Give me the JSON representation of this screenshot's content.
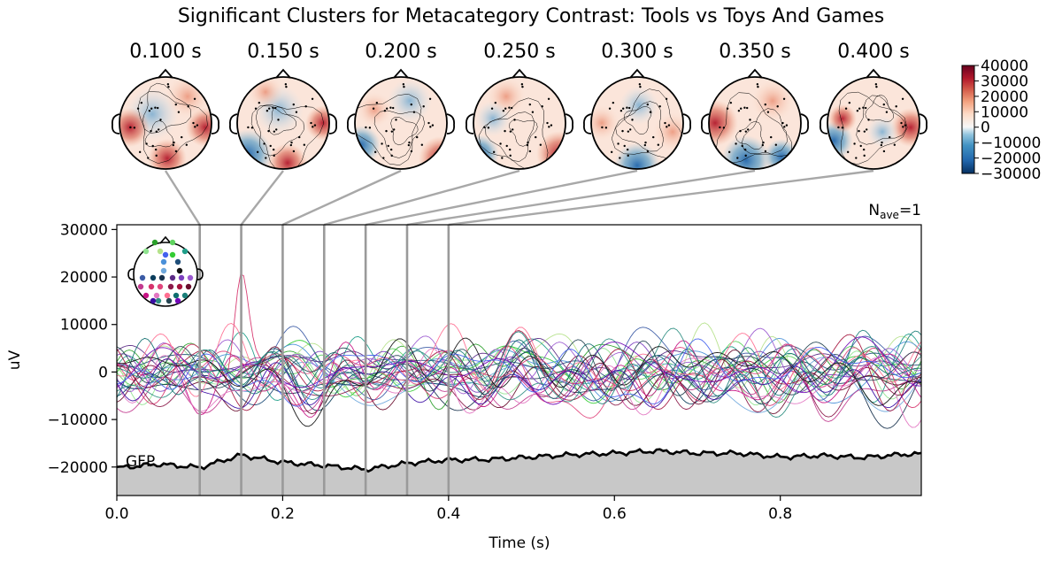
{
  "figure": {
    "title": "Significant Clusters for Metacategory Contrast: Tools vs Toys And Games"
  },
  "topomaps": {
    "time_labels": [
      "0.100 s",
      "0.150 s",
      "0.200 s",
      "0.250 s",
      "0.300 s",
      "0.350 s",
      "0.400 s"
    ],
    "times": [
      0.1,
      0.15,
      0.2,
      0.25,
      0.3,
      0.35,
      0.4
    ],
    "colorbar": {
      "ticks": [
        40000,
        30000,
        20000,
        10000,
        0,
        -10000,
        -20000,
        -30000
      ],
      "tick_labels": [
        "40000",
        "30000",
        "20000",
        "10000",
        "0",
        "−10000",
        "−20000",
        "−30000"
      ],
      "range": [
        -30000,
        40000
      ],
      "colormap": "RdBu_r"
    }
  },
  "nave_label": "N",
  "nave_sub": "ave",
  "nave_value": "=1",
  "gfp_label": "GFP",
  "chart_data": {
    "type": "line",
    "title": "Significant Clusters for Metacategory Contrast: Tools vs Toys And Games",
    "xlabel": "Time (s)",
    "ylabel": "uV",
    "xlim": [
      0.0,
      0.97
    ],
    "ylim": [
      -26000,
      31000
    ],
    "xticks": [
      0.0,
      0.2,
      0.4,
      0.6,
      0.8
    ],
    "xtick_labels": [
      "0.0",
      "0.2",
      "0.4",
      "0.6",
      "0.8"
    ],
    "yticks": [
      30000,
      20000,
      10000,
      0,
      -10000,
      -20000
    ],
    "ytick_labels": [
      "30000",
      "20000",
      "10000",
      "0",
      "−10000",
      "−20000"
    ],
    "highlight_times": [
      0.1,
      0.15,
      0.2,
      0.25,
      0.3,
      0.35,
      0.4
    ],
    "n_channels": 32,
    "channel_colors": [
      "#2ca02c",
      "#5fd35f",
      "#8fe38f",
      "#b5e28a",
      "#33cc33",
      "#1f9e89",
      "#4a90d9",
      "#6fa8dc",
      "#1f4e79",
      "#3b5ba5",
      "#0b3d5c",
      "#17324d",
      "#5b2a86",
      "#7b3fbf",
      "#9b59d0",
      "#c23b8f",
      "#d6336c",
      "#e0467c",
      "#8b1a4a",
      "#a4133c",
      "#6a0d2d",
      "#c71585",
      "#e377c2",
      "#ff6f91",
      "#0f6e6e",
      "#1b7f79",
      "#2f8f83",
      "#264653",
      "#3a0ca3",
      "#7209b7",
      "#4361ee",
      "#111111"
    ],
    "amplitude_scale": 5000,
    "gfp": {
      "label": "GFP",
      "times": [
        0.0,
        0.05,
        0.1,
        0.15,
        0.2,
        0.25,
        0.3,
        0.35,
        0.4,
        0.45,
        0.5,
        0.55,
        0.6,
        0.65,
        0.7,
        0.75,
        0.8,
        0.85,
        0.9,
        0.95,
        0.97
      ],
      "values": [
        5800,
        6600,
        5900,
        8500,
        7000,
        6300,
        5500,
        6800,
        7500,
        7600,
        8100,
        8600,
        8900,
        9400,
        8900,
        8900,
        8100,
        8400,
        8000,
        8700,
        8700
      ]
    }
  }
}
